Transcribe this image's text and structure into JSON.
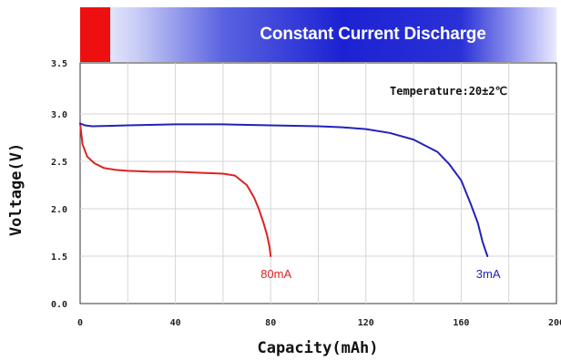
{
  "chart_data": {
    "type": "line",
    "title": "Constant Current Discharge",
    "annotation": "Temperature:20±2℃",
    "xlabel": "Capacity(mAh)",
    "ylabel": "Voltage(V)",
    "xlim": [
      0,
      200
    ],
    "ylim": [
      0.0,
      3.5
    ],
    "x_ticks": [
      "0",
      "40",
      "80",
      "120",
      "160",
      "200"
    ],
    "y_ticks": [
      "0.0",
      "1.5",
      "2.0",
      "2.5",
      "3.0",
      "3.5"
    ],
    "grid": true,
    "series": [
      {
        "name": "80mA",
        "color": "#dd2222",
        "x": [
          0,
          1,
          3,
          6,
          10,
          15,
          20,
          30,
          40,
          50,
          60,
          65,
          70,
          73,
          75,
          77,
          78.5,
          79.5,
          80
        ],
        "y": [
          2.9,
          2.68,
          2.55,
          2.48,
          2.43,
          2.41,
          2.4,
          2.39,
          2.39,
          2.38,
          2.37,
          2.35,
          2.25,
          2.12,
          2.0,
          1.85,
          1.72,
          1.6,
          1.5
        ]
      },
      {
        "name": "3mA",
        "color": "#2222bb",
        "x": [
          0,
          2,
          5,
          20,
          40,
          60,
          80,
          100,
          110,
          120,
          130,
          140,
          150,
          155,
          160,
          164,
          167,
          169,
          171
        ],
        "y": [
          2.9,
          2.88,
          2.87,
          2.88,
          2.89,
          2.89,
          2.88,
          2.87,
          2.86,
          2.84,
          2.8,
          2.73,
          2.6,
          2.47,
          2.3,
          2.05,
          1.85,
          1.65,
          1.5
        ]
      }
    ]
  }
}
